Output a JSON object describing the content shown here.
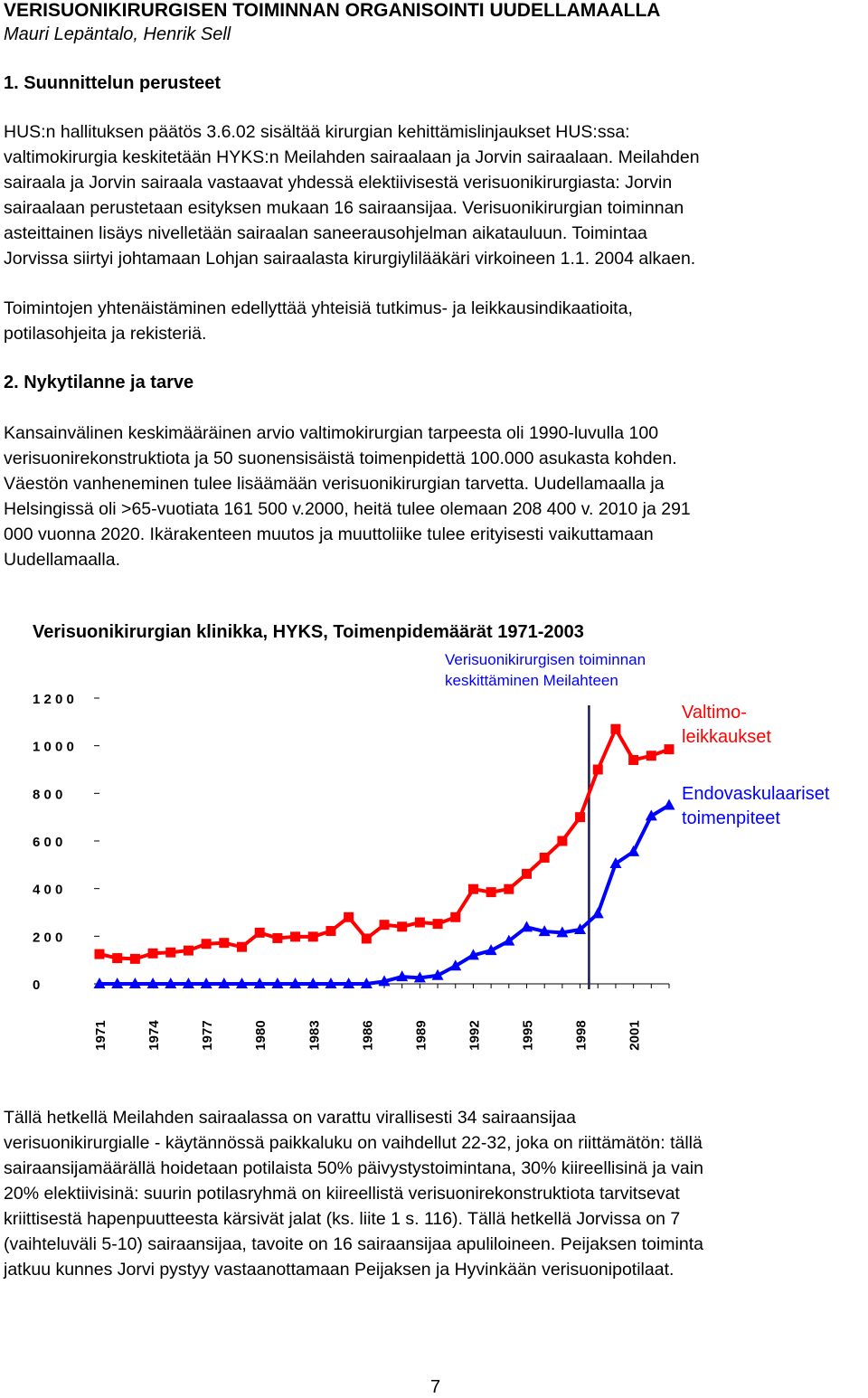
{
  "header": {
    "title": "VERISUONIKIRURGISEN TOIMINNAN ORGANISOINTI  UUDELLAMAALLA",
    "authors": "Mauri Lepäntalo, Henrik Sell"
  },
  "sections": [
    {
      "heading": "1. Suunnittelun perusteet",
      "paragraphs": [
        [
          "HUS:n hallituksen päätös 3.6.02 sisältää  kirurgian kehittämislinjaukset HUS:ssa:",
          "valtimokirurgia keskitetään HYKS:n Meilahden sairaalaan ja Jorvin sairaalaan. Meilahden",
          "sairaala ja Jorvin sairaala vastaavat yhdessä elektiivisestä verisuonikirurgiasta: Jorvin",
          "sairaalaan perustetaan esityksen mukaan 16 sairaansijaa. Verisuonikirurgian toiminnan",
          "asteittainen lisäys nivelletään sairaalan saneerausohjelman aikatauluun. Toimintaa",
          "Jorvissa siirtyi johtamaan Lohjan sairaalasta kirurgiylilääkäri virkoineen 1.1. 2004 alkaen."
        ],
        [
          "Toimintojen yhtenäistäminen edellyttää yhteisiä tutkimus- ja leikkausindikaatioita,",
          "potilasohjeita ja rekisteriä."
        ]
      ]
    },
    {
      "heading": "2. Nykytilanne ja tarve",
      "paragraphs": [
        [
          "Kansainvälinen  keskimääräinen arvio valtimokirurgian tarpeesta oli 1990-luvulla 100",
          "verisuonirekonstruktiota ja 50 suonensisäistä toimenpidettä 100.000 asukasta kohden.",
          "Väestön vanheneminen tulee lisäämään verisuonikirurgian tarvetta. Uudellamaalla ja",
          "Helsingissä oli >65-vuotiata 161 500 v.2000, heitä tulee olemaan 208 400 v. 2010 ja 291",
          "000 vuonna 2020. Ikärakenteen muutos ja muuttoliike tulee erityisesti vaikuttamaan",
          "Uudellamaalla."
        ]
      ]
    }
  ],
  "closing_paragraph": [
    "Tällä hetkellä Meilahden sairaalassa on varattu virallisesti 34 sairaansijaa",
    "verisuonikirurgialle -  käytännössä paikkaluku on vaihdellut 22-32, joka on riittämätön: tällä",
    "sairaansijamäärällä hoidetaan potilaista 50% päivystystoimintana, 30% kiireellisinä ja vain",
    "20% elektiivisinä: suurin potilasryhmä on kiireellistä verisuonirekonstruktiota tarvitsevat",
    "kriittisestä hapenpuutteesta kärsivät jalat (ks. liite 1 s. 116). Tällä hetkellä Jorvissa on 7",
    "(vaihteluväli 5-10) sairaansijaa, tavoite on 16 sairaansijaa apuliloineen. Peijaksen toiminta",
    "jatkuu kunnes Jorvi pystyy vastaanottamaan Peijaksen ja Hyvinkään verisuonipotilaat."
  ],
  "page_number": "7",
  "chart_data": {
    "type": "line",
    "title": "Verisuonikirurgian klinikka, HYKS, Toimenpidemäärät 1971-2003",
    "xlabel": "",
    "ylabel": "",
    "x": [
      1971,
      1972,
      1973,
      1974,
      1975,
      1976,
      1977,
      1978,
      1979,
      1980,
      1981,
      1982,
      1983,
      1984,
      1985,
      1986,
      1987,
      1988,
      1989,
      1990,
      1991,
      1992,
      1993,
      1994,
      1995,
      1996,
      1997,
      1998,
      1999,
      2000,
      2001,
      2002,
      2003
    ],
    "x_tick_labels": [
      "1971",
      "1974",
      "1977",
      "1980",
      "1983",
      "1986",
      "1989",
      "1992",
      "1995",
      "1998",
      "2001"
    ],
    "y_tick_labels": [
      "1 2 0 0",
      "1 0 0 0",
      "8 0 0",
      "6 0 0",
      "4 0 0",
      "2 0 0",
      "0"
    ],
    "y_ticks": [
      1200,
      1000,
      800,
      600,
      400,
      200,
      0
    ],
    "ylim": [
      0,
      1200
    ],
    "xlim": [
      1971,
      2003
    ],
    "grid": false,
    "series": [
      {
        "name": "Valtimo-\nleikkaukset",
        "label_lines": [
          "Valtimo-",
          "leikkaukset"
        ],
        "color": "#ff0000",
        "marker": "square",
        "values": [
          125,
          108,
          105,
          128,
          132,
          140,
          168,
          172,
          155,
          215,
          192,
          198,
          198,
          222,
          280,
          190,
          248,
          240,
          258,
          252,
          280,
          398,
          385,
          398,
          462,
          530,
          600,
          700,
          900,
          1070,
          940,
          958,
          985
        ]
      },
      {
        "name": "Endovaskulaariset\ntoimenpiteet",
        "label_lines": [
          "Endovaskulaariset",
          "toimenpiteet"
        ],
        "color": "#0000ff",
        "marker": "triangle",
        "values": [
          0,
          0,
          0,
          0,
          0,
          0,
          0,
          0,
          0,
          0,
          0,
          0,
          0,
          0,
          0,
          0,
          10,
          30,
          25,
          35,
          75,
          120,
          140,
          180,
          238,
          220,
          215,
          228,
          295,
          505,
          555,
          705,
          750
        ]
      }
    ],
    "annotation": {
      "lines": [
        "Verisuonikirurgisen toiminnan",
        "keskittäminen Meilahteen"
      ],
      "x": 1998.5,
      "color": "#0000ff",
      "line_color": "#1a1a4d"
    }
  }
}
